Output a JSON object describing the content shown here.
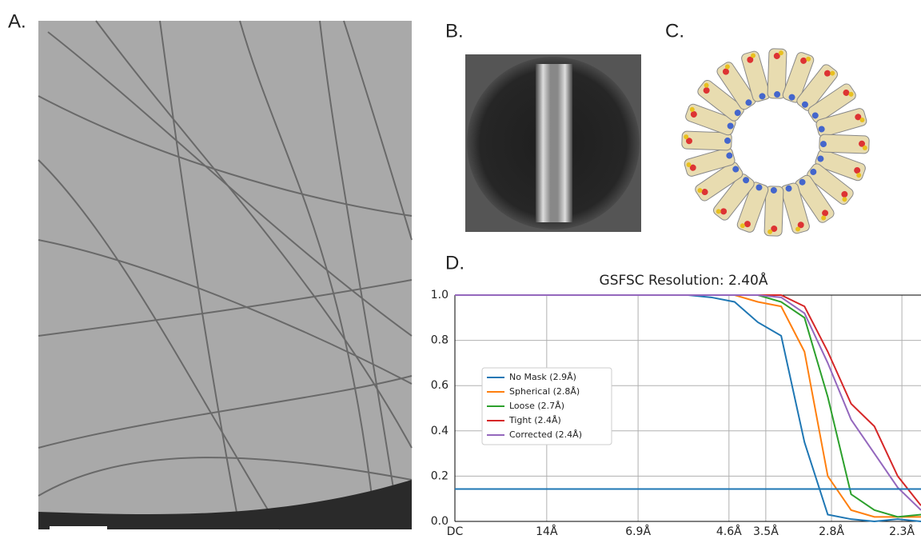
{
  "panels": {
    "a": "A.",
    "b": "B.",
    "c": "C.",
    "d": "D."
  },
  "chart_data": {
    "type": "line",
    "title": "GSFSC Resolution: 2.40Å",
    "x": [
      0,
      5,
      10,
      15,
      20,
      25,
      30,
      35,
      40,
      45,
      50,
      55,
      60,
      65,
      70,
      75,
      80,
      85,
      90,
      95,
      100
    ],
    "xlim": [
      0,
      100
    ],
    "xticks": [
      {
        "value": 0,
        "label": "DC"
      },
      {
        "value": 19.7,
        "label": "14Å"
      },
      {
        "value": 39.3,
        "label": "6.9Å"
      },
      {
        "value": 58.8,
        "label": "4.6Å"
      },
      {
        "value": 66.7,
        "label": "3.5Å"
      },
      {
        "value": 80.8,
        "label": "2.8Å"
      },
      {
        "value": 95.9,
        "label": "2.3Å"
      }
    ],
    "ylim": [
      0,
      1
    ],
    "yticks": [
      {
        "value": 0,
        "label": "0.0"
      },
      0.2,
      0.4,
      0.6,
      0.8,
      {
        "value": 1,
        "label": "1.0"
      }
    ],
    "grid": true,
    "legend": "center-left",
    "threshold": 0.143,
    "threshold_color": "#1f77b4",
    "series": [
      {
        "name": "No Mask (2.9Å)",
        "color": "#1f77b4",
        "values": [
          1,
          1,
          1,
          1,
          1,
          1,
          1,
          1,
          1,
          1,
          1,
          0.99,
          0.97,
          0.88,
          0.82,
          0.35,
          0.03,
          0.01,
          0,
          0.01,
          0
        ]
      },
      {
        "name": "Spherical (2.8Å)",
        "color": "#ff7f0e",
        "values": [
          1,
          1,
          1,
          1,
          1,
          1,
          1,
          1,
          1,
          1,
          1,
          1,
          1,
          0.97,
          0.95,
          0.75,
          0.2,
          0.05,
          0.02,
          0.02,
          0.02
        ]
      },
      {
        "name": "Loose (2.7Å)",
        "color": "#2ca02c",
        "values": [
          1,
          1,
          1,
          1,
          1,
          1,
          1,
          1,
          1,
          1,
          1,
          1,
          1,
          1,
          0.97,
          0.9,
          0.55,
          0.12,
          0.05,
          0.02,
          0.03
        ]
      },
      {
        "name": "Tight (2.4Å)",
        "color": "#d62728",
        "values": [
          1,
          1,
          1,
          1,
          1,
          1,
          1,
          1,
          1,
          1,
          1,
          1,
          1,
          1,
          1,
          0.95,
          0.75,
          0.52,
          0.42,
          0.2,
          0.07
        ]
      },
      {
        "name": "Corrected (2.4Å)",
        "color": "#9467bd",
        "values": [
          1,
          1,
          1,
          1,
          1,
          1,
          1,
          1,
          1,
          1,
          1,
          1,
          1,
          1,
          0.99,
          0.92,
          0.7,
          0.45,
          0.3,
          0.15,
          0.05
        ]
      }
    ]
  }
}
